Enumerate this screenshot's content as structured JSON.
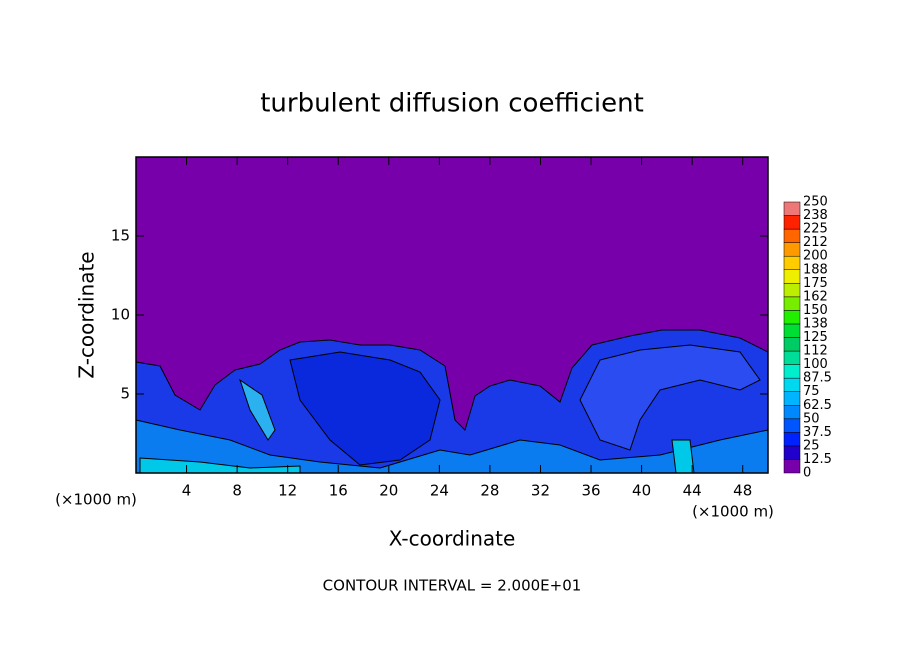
{
  "chart_data": {
    "type": "heatmap",
    "title": "turbulent diffusion coefficient",
    "xlabel": "X-coordinate",
    "ylabel": "Z-coordinate",
    "xunit": "(×1000 m)",
    "yunit": "(×1000 m)",
    "footnote": "CONTOUR INTERVAL = 2.000E+01",
    "xlim": [
      0,
      50
    ],
    "xticks": [
      4,
      8,
      12,
      16,
      20,
      24,
      28,
      32,
      36,
      40,
      44,
      48
    ],
    "ylim": [
      0,
      20
    ],
    "yticks": [
      5,
      10,
      15
    ],
    "colorbar": {
      "ticks": [
        0,
        12.5,
        25,
        37.5,
        50,
        62.5,
        75,
        87.5,
        100,
        {
          "value": 112.5,
          "label": "112"
        },
        125,
        {
          "value": 137.5,
          "label": "138"
        },
        150,
        {
          "value": 162.5,
          "label": "162"
        },
        175,
        {
          "value": 187.5,
          "label": "188"
        },
        200,
        {
          "value": 212.5,
          "label": "212"
        },
        225,
        {
          "value": 237.5,
          "label": "238"
        },
        250
      ],
      "colors": [
        "#7700aa",
        "#2200cc",
        "#0022ff",
        "#0055ff",
        "#0088ff",
        "#00b4ff",
        "#00d8f0",
        "#00eecc",
        "#00dd99",
        "#00cc66",
        "#00dd33",
        "#22ee00",
        "#77ee00",
        "#bbee00",
        "#eeee00",
        "#ffcc00",
        "#ff9900",
        "#ff6600",
        "#ff2200",
        "#ee7777"
      ]
    }
  }
}
